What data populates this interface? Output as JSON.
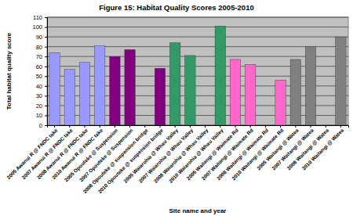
{
  "chart_data": {
    "type": "bar",
    "title": "Figure 15: Habitat Quality Scores 2005-2010",
    "x_label": "Site name and year",
    "y_label": "Total habitat quality score",
    "categories": [
      "2005 Awanui R @ FNDC take",
      "2007 Awanui R @ FNDC take",
      "2008 Awanui R @ FNDC take",
      "2010 Awanui R @ FNDC take",
      "2005 Opouteke @ Suspension",
      "2007 Opouteke @ Suspension",
      "2008 Opouteke @ suspension bridge",
      "2010 Opouteke @ suspension bridge",
      "2005 Waiarohia @ Whau Valley",
      "2007 Waiarohia @ Whau Valley",
      "2008 Waiarohia @ Whau Valley",
      "2010 Waiarohia @ Whau Valley",
      "2005 Waitangi @ Waimate Rd",
      "2007 Waitangi @ Waimate Rd",
      "2008 Waitangi @ Waimate Rd",
      "2010 Waitangi @ Waimate Rd",
      "2005 Waitangi @ Watea",
      "2007 Waitangi @ Watea",
      "2008 Waitangi @ Watea",
      "2010 Waitangi @ Watea"
    ],
    "values": [
      74,
      57,
      64,
      81,
      70,
      77,
      null,
      58,
      84,
      71,
      null,
      101,
      67,
      62,
      null,
      46,
      67,
      80,
      null,
      90
    ],
    "colors": [
      "#9999ff",
      "#9999ff",
      "#9999ff",
      "#9999ff",
      "#800080",
      "#800080",
      "#800080",
      "#800080",
      "#339966",
      "#339966",
      "#339966",
      "#339966",
      "#ff66cc",
      "#ff66cc",
      "#ff66cc",
      "#ff66cc",
      "#808080",
      "#808080",
      "#808080",
      "#808080"
    ],
    "ylim": [
      0,
      110
    ],
    "yticks": [
      0,
      10,
      20,
      30,
      40,
      50,
      60,
      70,
      80,
      90,
      100,
      110
    ],
    "grid": true
  }
}
